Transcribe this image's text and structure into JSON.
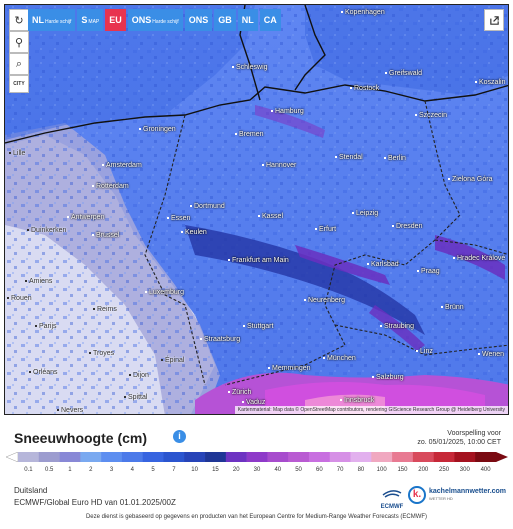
{
  "toolbar": {
    "reload_icon": "reload-icon",
    "location_icon": "map-pin-icon",
    "zoom_icon": "magnifier-icon",
    "city_label": "CITY"
  },
  "layers": [
    {
      "label": "NL",
      "sub": "Harde schijf",
      "active": false
    },
    {
      "label": "S",
      "sub": "MAP",
      "active": false
    },
    {
      "label": "EU",
      "sub": "",
      "active": true
    },
    {
      "label": "ONS",
      "sub": "Harde schijf",
      "active": false
    },
    {
      "label": "ONS",
      "sub": "",
      "active": false
    },
    {
      "label": "GB",
      "sub": "",
      "active": false
    },
    {
      "label": "NL",
      "sub": "",
      "active": false
    },
    {
      "label": "CA",
      "sub": "",
      "active": false
    }
  ],
  "share_icon": "share-icon",
  "cities": [
    {
      "name": "Kopenhagen",
      "dark": false
    },
    {
      "name": "Schleswig",
      "dark": false
    },
    {
      "name": "Rostock",
      "dark": false
    },
    {
      "name": "Greifswald",
      "dark": false
    },
    {
      "name": "Koszalin",
      "dark": false
    },
    {
      "name": "Hamburg",
      "dark": false
    },
    {
      "name": "Szczecin",
      "dark": false
    },
    {
      "name": "Groningen",
      "dark": false
    },
    {
      "name": "Bremen",
      "dark": false
    },
    {
      "name": "Amsterdam",
      "dark": false
    },
    {
      "name": "Hannover",
      "dark": false
    },
    {
      "name": "Stendal",
      "dark": false
    },
    {
      "name": "Berlin",
      "dark": false
    },
    {
      "name": "Zielona Góra",
      "dark": false
    },
    {
      "name": "Rotterdam",
      "dark": false
    },
    {
      "name": "Dortmund",
      "dark": false
    },
    {
      "name": "Kassel",
      "dark": false
    },
    {
      "name": "Leipzig",
      "dark": false
    },
    {
      "name": "Dresden",
      "dark": false
    },
    {
      "name": "Antwerpen",
      "dark": false
    },
    {
      "name": "Essen",
      "dark": false
    },
    {
      "name": "Brussel",
      "dark": false
    },
    {
      "name": "Keulen",
      "dark": false
    },
    {
      "name": "Erfurt",
      "dark": false
    },
    {
      "name": "Hradec Králové",
      "dark": false
    },
    {
      "name": "Frankfurt am Main",
      "dark": false
    },
    {
      "name": "Karlsbad",
      "dark": false
    },
    {
      "name": "Praag",
      "dark": false
    },
    {
      "name": "Luxemburg",
      "dark": false
    },
    {
      "name": "Neurenberg",
      "dark": false
    },
    {
      "name": "Brünn",
      "dark": false
    },
    {
      "name": "Stuttgart",
      "dark": false
    },
    {
      "name": "Straubing",
      "dark": false
    },
    {
      "name": "Straatsburg",
      "dark": false
    },
    {
      "name": "München",
      "dark": false
    },
    {
      "name": "Linz",
      "dark": false
    },
    {
      "name": "Wenen",
      "dark": false
    },
    {
      "name": "Salzburg",
      "dark": false
    },
    {
      "name": "Zürich",
      "dark": false
    },
    {
      "name": "Memmingen",
      "dark": false
    },
    {
      "name": "Vaduz",
      "dark": false
    },
    {
      "name": "Innsbruck",
      "dark": false
    },
    {
      "name": "Lille",
      "dark": true
    },
    {
      "name": "Amiens",
      "dark": true
    },
    {
      "name": "Reims",
      "dark": true
    },
    {
      "name": "Parijs",
      "dark": true
    },
    {
      "name": "Troyes",
      "dark": true
    },
    {
      "name": "Orléans",
      "dark": true
    },
    {
      "name": "Dijon",
      "dark": true
    },
    {
      "name": "Épinal",
      "dark": true
    },
    {
      "name": "Nevers",
      "dark": true
    },
    {
      "name": "Duinkerken",
      "dark": true
    },
    {
      "name": "Rouen",
      "dark": true
    },
    {
      "name": "Spittal",
      "dark": true
    }
  ],
  "attribution": "Kartenmaterial: Map data © OpenStreetMap contributors, rendering GIScience Research Group @ Heidelberg University",
  "legend": {
    "title": "Sneeuwhoogte (cm)",
    "info_icon": "info-icon",
    "forecast_label": "Voorspelling voor",
    "forecast_time": "zo. 05/01/2025, 10:00 CET",
    "ticks": [
      "0.1",
      "0.5",
      "1",
      "2",
      "3",
      "4",
      "5",
      "7",
      "10",
      "15",
      "20",
      "30",
      "40",
      "50",
      "60",
      "70",
      "80",
      "100",
      "150",
      "200",
      "250",
      "300",
      "400"
    ],
    "colors": [
      "#b6b6da",
      "#9c9ccf",
      "#8888d6",
      "#7aa9f0",
      "#5d8ef0",
      "#4c7ae9",
      "#3764e0",
      "#2b55cf",
      "#2744b8",
      "#1f3696",
      "#6d33c2",
      "#8e3ac9",
      "#a74ccd",
      "#b95bd2",
      "#c86fe0",
      "#d690e6",
      "#e2b0ee",
      "#f0a8c0",
      "#e87a92",
      "#d84a5c",
      "#c62838",
      "#a4121f",
      "#7a0a12"
    ]
  },
  "region": "Duitsland",
  "model": "ECMWF/Global Euro HD van 01.01.2025/00Z",
  "logos": {
    "ecmwf": "ECMWF",
    "km_letter": "k.",
    "km_name": "kachelmannwetter.com",
    "km_sub": "WETTER HD"
  },
  "footer": "Deze dienst is gebaseerd op gegevens en producten van het European Centre for Medium-Range Weather Forecasts (ECMWF)"
}
